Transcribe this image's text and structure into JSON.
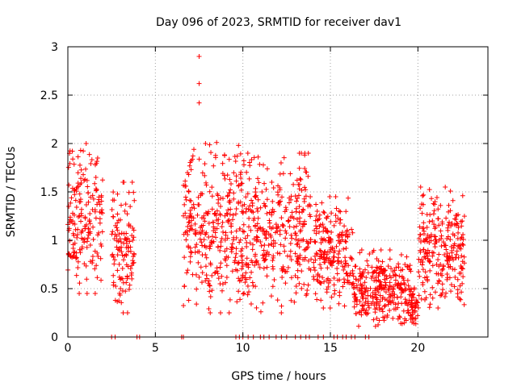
{
  "chart_data": {
    "type": "scatter",
    "title": "Day 096 of 2023, SRMTID for receiver dav1",
    "xlabel": "GPS time / hours",
    "ylabel": "SRMTID / TECUs",
    "xlim": [
      0,
      24
    ],
    "ylim": [
      0,
      3
    ],
    "x_ticks": [
      0,
      5,
      10,
      15,
      20
    ],
    "x_tick_labels": [
      "0",
      "5",
      "10",
      "15",
      "20"
    ],
    "y_ticks": [
      0,
      0.5,
      1,
      1.5,
      2,
      2.5,
      3
    ],
    "y_tick_labels": [
      "0",
      "0.5",
      "1",
      "1.5",
      "2",
      "2.5",
      "3"
    ],
    "grid": true,
    "marker": "+",
    "series": [
      {
        "name": "dav1",
        "color": "#ff0000",
        "segments": [
          {
            "start": 0.0,
            "end": 2.0,
            "min": 0.45,
            "max": 2.0,
            "peak": 1.95
          },
          {
            "start": 2.5,
            "end": 3.8,
            "min": 0.25,
            "max": 1.6,
            "peak": 1.5
          },
          {
            "start": 6.6,
            "end": 9.9,
            "min": 0.25,
            "max": 2.0,
            "peak": 1.95
          },
          {
            "start": 9.9,
            "end": 13.9,
            "min": 0.25,
            "max": 1.9,
            "peak": 1.6
          },
          {
            "start": 14.0,
            "end": 16.3,
            "min": 0.3,
            "max": 1.45,
            "peak": 1.3
          },
          {
            "start": 16.3,
            "end": 19.6,
            "min": 0.1,
            "max": 0.9,
            "peak": 0.75
          },
          {
            "start": 19.6,
            "end": 20.0,
            "min": 0.0,
            "max": 0.6,
            "peak": 0.5
          },
          {
            "start": 20.0,
            "end": 22.7,
            "min": 0.3,
            "max": 1.55,
            "peak": 1.4
          }
        ],
        "outliers": [
          {
            "x": 7.5,
            "y": 2.9
          },
          {
            "x": 7.5,
            "y": 2.62
          },
          {
            "x": 7.5,
            "y": 2.42
          },
          {
            "x": 9.75,
            "y": 1.98
          },
          {
            "x": 8.5,
            "y": 2.01
          },
          {
            "x": 7.2,
            "y": 1.94
          }
        ],
        "zero_markers": [
          2.5,
          2.7,
          3.95,
          4.1,
          6.5,
          6.6,
          9.6,
          9.8,
          10.0,
          10.3,
          10.6,
          11.0,
          11.2,
          11.5,
          11.9,
          12.2,
          12.5,
          13.0,
          13.3,
          13.6,
          13.8,
          14.3,
          14.6,
          15.2,
          15.4,
          15.7,
          15.9,
          16.2,
          16.4,
          17.0,
          17.2
        ]
      }
    ]
  }
}
